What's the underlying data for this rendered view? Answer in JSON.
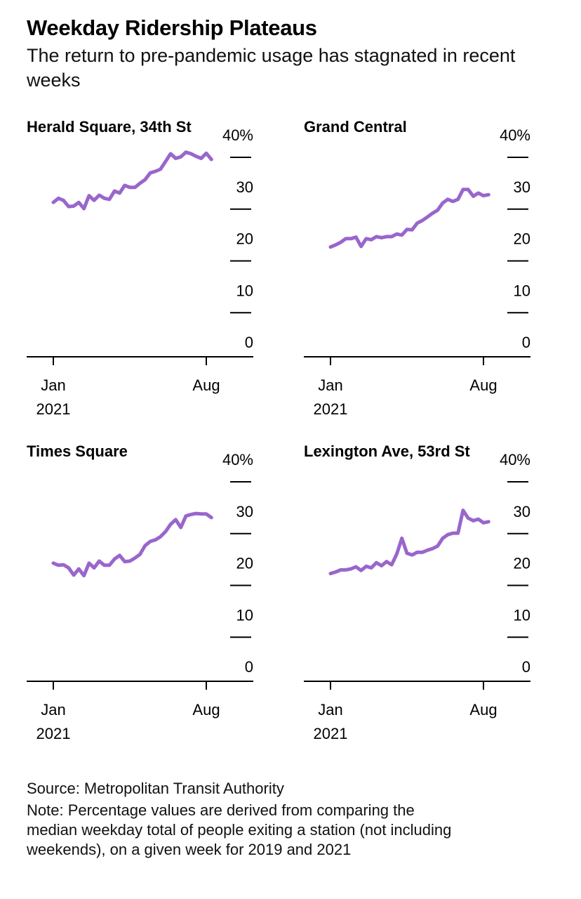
{
  "title": "Weekday Ridership Plateaus",
  "subtitle": "The return to pre-pandemic usage has stagnated in recent weeks",
  "source": "Source: Metropolitan Transit Authority",
  "note": "Note: Percentage values are derived from comparing the median weekday total of people exiting a station (not including weekends), on a given week for 2019 and 2021",
  "colors": {
    "line": "#9966cc",
    "axis": "#000000"
  },
  "chart_data": [
    {
      "type": "line",
      "title": "Herald Square, 34th St",
      "ylim": [
        0,
        40
      ],
      "y_ticks": [
        "40%",
        "30",
        "20",
        "10",
        "0"
      ],
      "x_ticks": [
        {
          "label": "Jan",
          "sublabel": "2021",
          "week": 0
        },
        {
          "label": "Aug",
          "sublabel": "",
          "week": 30
        }
      ],
      "series": [
        {
          "values": [
            29.8,
            30.6,
            30.2,
            29.0,
            29.1,
            29.8,
            28.6,
            31.1,
            30.2,
            31.2,
            30.6,
            30.4,
            32.0,
            31.6,
            33.1,
            32.7,
            32.7,
            33.5,
            34.2,
            35.5,
            35.8,
            36.2,
            37.7,
            39.2,
            38.3,
            38.6,
            39.5,
            39.2,
            38.7,
            38.3,
            39.3,
            38.1
          ]
        }
      ]
    },
    {
      "type": "line",
      "title": "Grand Central",
      "ylim": [
        0,
        40
      ],
      "y_ticks": [
        "40%",
        "30",
        "20",
        "10",
        "0"
      ],
      "x_ticks": [
        {
          "label": "Jan",
          "sublabel": "2021",
          "week": 0
        },
        {
          "label": "Aug",
          "sublabel": "",
          "week": 30
        }
      ],
      "series": [
        {
          "values": [
            21.2,
            21.6,
            22.1,
            22.8,
            22.8,
            23.1,
            21.3,
            22.8,
            22.6,
            23.2,
            23.0,
            23.2,
            23.2,
            23.7,
            23.5,
            24.6,
            24.5,
            25.8,
            26.3,
            27.0,
            27.7,
            28.3,
            29.7,
            30.4,
            30.0,
            30.4,
            32.3,
            32.3,
            31.0,
            31.6,
            31.1,
            31.3
          ]
        }
      ]
    },
    {
      "type": "line",
      "title": "Times Square",
      "ylim": [
        0,
        40
      ],
      "y_ticks": [
        "40%",
        "30",
        "20",
        "10",
        "0"
      ],
      "x_ticks": [
        {
          "label": "Jan",
          "sublabel": "2021",
          "week": 0
        },
        {
          "label": "Aug",
          "sublabel": "",
          "week": 30
        }
      ],
      "series": [
        {
          "values": [
            22.8,
            22.4,
            22.5,
            21.9,
            20.5,
            21.7,
            20.4,
            22.8,
            21.9,
            23.2,
            22.4,
            22.4,
            23.6,
            24.3,
            23.1,
            23.2,
            23.8,
            24.5,
            26.2,
            27.0,
            27.3,
            27.9,
            28.9,
            30.3,
            31.2,
            29.7,
            31.9,
            32.2,
            32.4,
            32.3,
            32.3,
            31.6
          ]
        }
      ]
    },
    {
      "type": "line",
      "title": "Lexington Ave, 53rd St",
      "ylim": [
        0,
        40
      ],
      "y_ticks": [
        "40%",
        "30",
        "20",
        "10",
        "0"
      ],
      "x_ticks": [
        {
          "label": "Jan",
          "sublabel": "2021",
          "week": 0
        },
        {
          "label": "Aug",
          "sublabel": "",
          "week": 30
        }
      ],
      "series": [
        {
          "values": [
            20.8,
            21.1,
            21.5,
            21.5,
            21.7,
            22.1,
            21.4,
            22.2,
            21.9,
            22.9,
            22.3,
            23.1,
            22.5,
            24.6,
            27.6,
            24.7,
            24.4,
            24.9,
            24.9,
            25.3,
            25.6,
            26.1,
            27.6,
            28.3,
            28.6,
            28.6,
            33.0,
            31.5,
            31.0,
            31.3,
            30.6,
            30.8
          ]
        }
      ]
    }
  ]
}
